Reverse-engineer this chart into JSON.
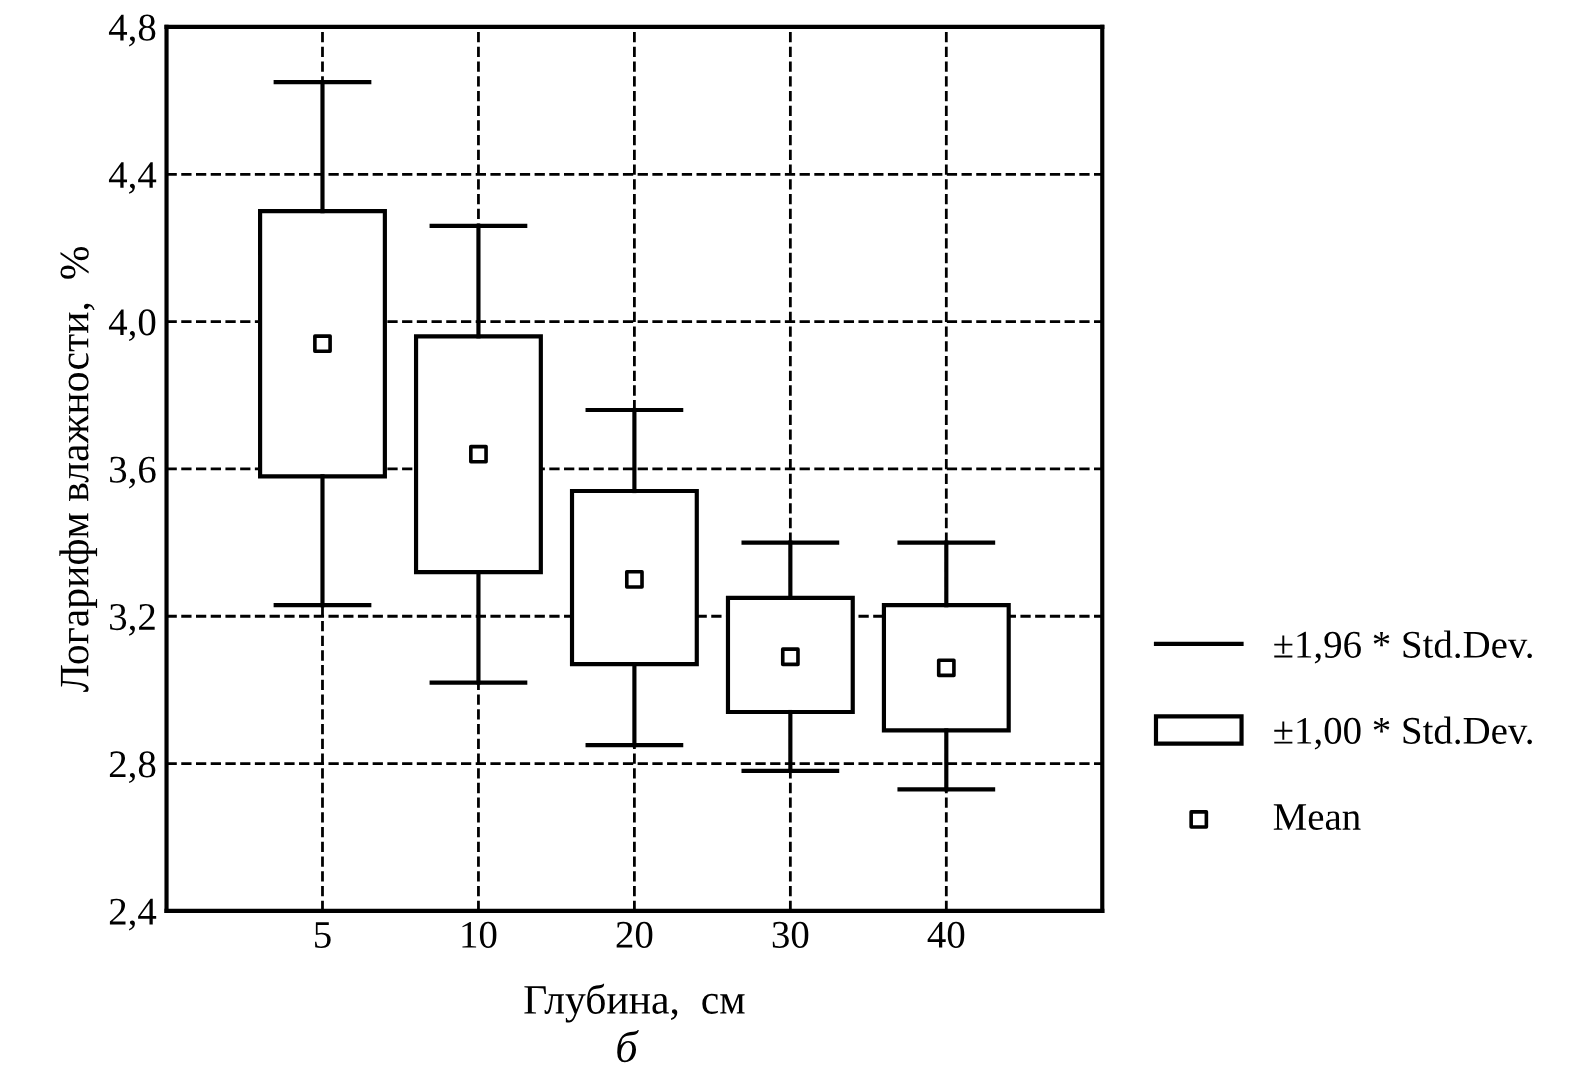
{
  "chart_data": {
    "type": "box",
    "xlabel": "Глубина,  см",
    "ylabel": "Логарифм влажности,  %",
    "categories": [
      "5",
      "10",
      "20",
      "30",
      "40"
    ],
    "boxes": [
      {
        "low": 3.23,
        "q1": 3.58,
        "q3": 4.3,
        "high": 4.65,
        "mean": 3.94
      },
      {
        "low": 3.02,
        "q1": 3.32,
        "q3": 3.96,
        "high": 4.26,
        "mean": 3.64
      },
      {
        "low": 2.85,
        "q1": 3.07,
        "q3": 3.54,
        "high": 3.76,
        "mean": 3.3
      },
      {
        "low": 2.78,
        "q1": 2.94,
        "q3": 3.25,
        "high": 3.4,
        "mean": 3.09
      },
      {
        "low": 2.73,
        "q1": 2.89,
        "q3": 3.23,
        "high": 3.4,
        "mean": 3.06
      }
    ],
    "ylim": [
      2.4,
      4.8
    ],
    "yticks": [
      {
        "value": 2.4,
        "label": "2,4"
      },
      {
        "value": 2.8,
        "label": "2,8"
      },
      {
        "value": 3.2,
        "label": "3,2"
      },
      {
        "value": 3.6,
        "label": "3,6"
      },
      {
        "value": 4.0,
        "label": "4,0"
      },
      {
        "value": 4.4,
        "label": "4,4"
      },
      {
        "value": 4.8,
        "label": "4,8"
      }
    ],
    "grid": true,
    "marker": "square",
    "annotations": [
      "±1,96 * Std.Dev.",
      "±1,00 * Std.Dev.",
      "Mean",
      "б"
    ]
  }
}
